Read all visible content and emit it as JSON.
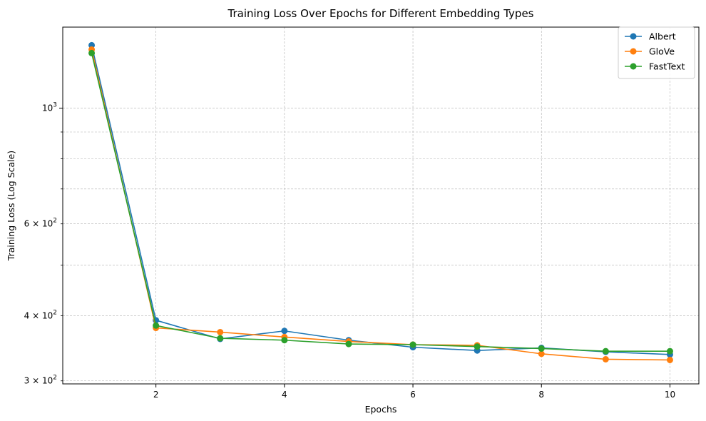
{
  "chart_data": {
    "type": "line",
    "title": "Training Loss Over Epochs for Different Embedding Types",
    "xlabel": "Epochs",
    "ylabel": "Training Loss (Log Scale)",
    "yscale": "log",
    "xlim": [
      0.55,
      10.45
    ],
    "ylim": [
      296,
      1430
    ],
    "x": [
      1,
      2,
      3,
      4,
      5,
      6,
      7,
      8,
      9,
      10
    ],
    "x_ticks": [
      2,
      4,
      6,
      8,
      10
    ],
    "x_tick_labels": [
      "2",
      "4",
      "6",
      "8",
      "10"
    ],
    "y_major_ticks": [
      1000
    ],
    "y_major_tick_labels": [
      "10^3"
    ],
    "y_minor_ticks": [
      300,
      400,
      500,
      600,
      700,
      800,
      900
    ],
    "y_minor_tick_labels": [
      "3 × 10^2",
      "4 × 10^2",
      "",
      "6 × 10^2",
      "",
      "",
      ""
    ],
    "grid": true,
    "legend_position": "top-right",
    "series": [
      {
        "name": "Albert",
        "color": "#1f77b4",
        "values": [
          1320,
          392,
          361,
          374,
          359,
          348,
          343,
          347,
          341,
          337
        ]
      },
      {
        "name": "GloVe",
        "color": "#ff7f0e",
        "values": [
          1295,
          379,
          372,
          364,
          357,
          352,
          351,
          338,
          330,
          329
        ]
      },
      {
        "name": "FastText",
        "color": "#2ca02c",
        "values": [
          1275,
          383,
          362,
          359,
          353,
          352,
          349,
          346,
          342,
          342
        ]
      }
    ]
  }
}
